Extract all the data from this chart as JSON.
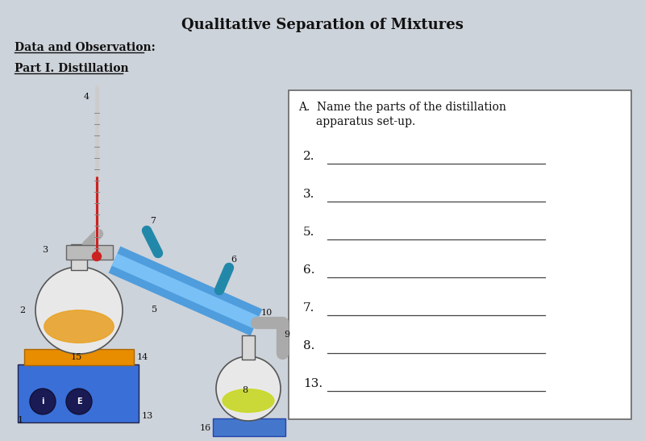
{
  "title": "Qualitative Separation of Mixtures",
  "section1": "Data and Observation:",
  "section2": "Part I. Distillation",
  "box_title_line1": "A.  Name the parts of the distillation",
  "box_title_line2": "     apparatus set-up.",
  "numbered_lines": [
    "2.",
    "3.",
    "5.",
    "6.",
    "7.",
    "8.",
    "13."
  ],
  "bg_color": "#cdd3da",
  "box_bg": "#ffffff",
  "font_color": "#111111",
  "title_fontsize": 13,
  "label_fontsize": 10,
  "line_fontsize": 11,
  "hotplate_color": "#3a6fd8",
  "platform_color": "#e88c00",
  "condenser_outer": "#4499dd",
  "condenser_inner": "#88ccff",
  "flask_color": "#e8e8e8",
  "liquid_color": "#e8a020",
  "collect_liquid": "#c8d820",
  "tube_color": "#aaaaaa",
  "therm_color": "#cccccc",
  "therm_mercury": "#cc2222",
  "tray_color": "#4477cc"
}
